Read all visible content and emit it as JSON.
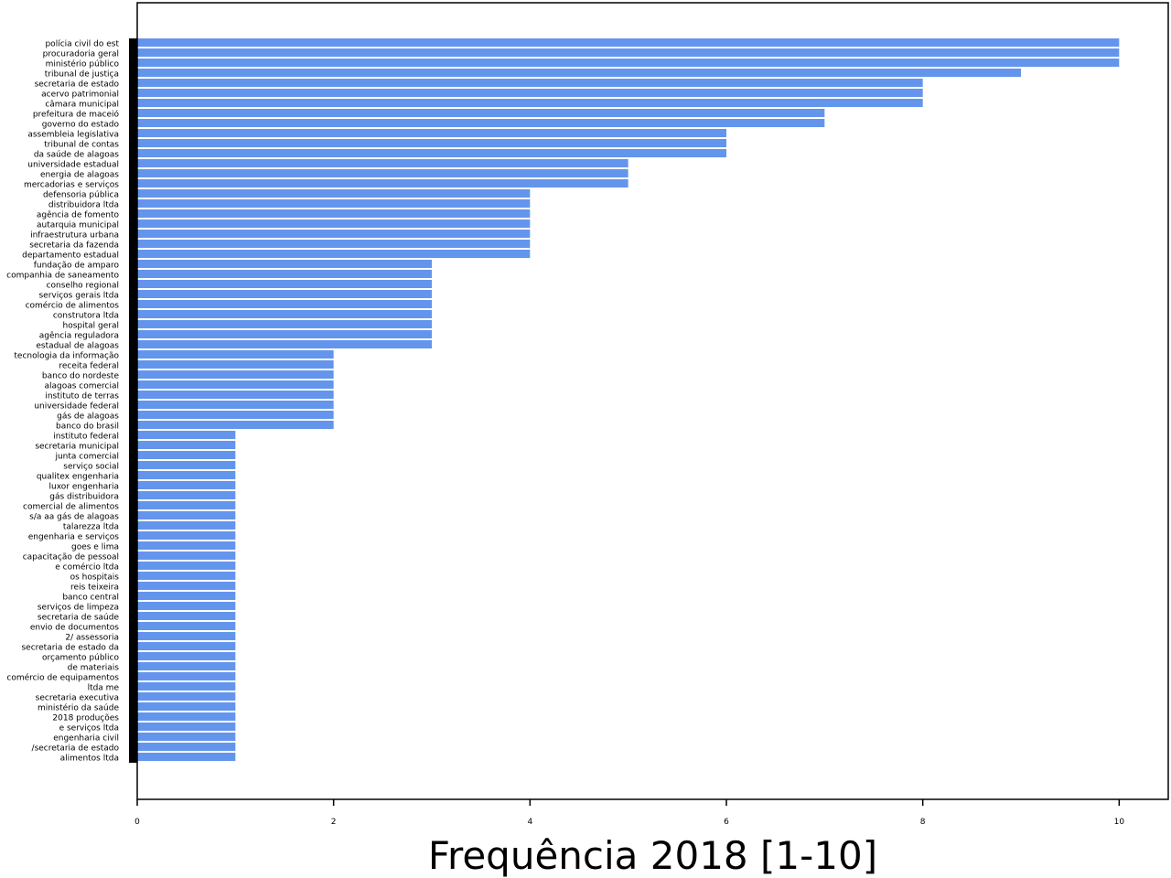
{
  "chart_data": {
    "type": "bar",
    "orientation": "horizontal",
    "title": "",
    "xlabel": "Frequência 2018 [1-10]",
    "ylabel": "",
    "xlim": [
      0,
      10.5
    ],
    "xticks": [
      "0",
      "2",
      "4",
      "6",
      "8",
      "10"
    ],
    "grid": false,
    "bar_color": "#6495ED",
    "categories": [
      "polícia civil do est",
      "procuradoria geral",
      "ministério público",
      "tribunal de justiça",
      "secretaria de estado",
      "acervo patrimonial",
      "câmara municipal",
      "prefeitura de maceió",
      "governo do estado",
      "assembleia legislativa",
      "tribunal de contas",
      "da saúde de alagoas",
      "universidade estadual",
      "energia de alagoas",
      "mercadorias e serviços",
      "defensoria pública",
      "distribuidora ltda",
      "agência de fomento",
      "autarquia municipal",
      "infraestrutura urbana",
      "secretaria da fazenda",
      "departamento estadual",
      "fundação de amparo",
      "companhia de saneamento",
      "conselho regional",
      "serviços gerais ltda",
      "comércio de alimentos",
      "construtora ltda",
      "hospital geral",
      "agência reguladora",
      "estadual de alagoas",
      "tecnologia da informação",
      "receita federal",
      "banco do nordeste",
      "alagoas comercial",
      "instituto de terras",
      "universidade federal",
      "gás de alagoas",
      "banco do brasil",
      "instituto federal",
      "secretaria municipal",
      "junta comercial",
      "serviço social",
      "qualitex engenharia",
      "luxor engenharia",
      "gás distribuidora",
      "comercial de alimentos",
      "s/a aa gás de alagoas",
      "talarezza ltda",
      "engenharia e serviços",
      "goes e lima",
      "capacitação de pessoal",
      "e comércio ltda",
      "os hospitais",
      "reis teixeira",
      "banco central",
      "serviços de limpeza",
      "secretaria de saúde",
      "envio de documentos",
      "2/ assessoria",
      "secretaria de estado da",
      "orçamento público",
      "de materiais",
      "comércio de equipamentos",
      "ltda me",
      "secretaria executiva",
      "ministério da saúde",
      "2018 produções",
      "e serviços ltda",
      "engenharia civil",
      "/secretaria de estado",
      "alimentos ltda"
    ],
    "values": [
      10,
      10,
      10,
      9,
      8,
      8,
      8,
      7,
      7,
      6,
      6,
      6,
      5,
      5,
      5,
      4,
      4,
      4,
      4,
      4,
      4,
      4,
      3,
      3,
      3,
      3,
      3,
      3,
      3,
      3,
      3,
      2,
      2,
      2,
      2,
      2,
      2,
      2,
      2,
      1,
      1,
      1,
      1,
      1,
      1,
      1,
      1,
      1,
      1,
      1,
      1,
      1,
      1,
      1,
      1,
      1,
      1,
      1,
      1,
      1,
      1,
      1,
      1,
      1,
      1,
      1,
      1,
      1,
      1,
      1,
      1,
      1
    ]
  }
}
